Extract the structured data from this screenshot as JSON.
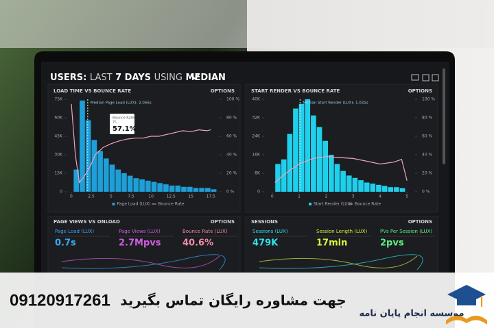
{
  "dashboard": {
    "header": [
      "USERS:",
      "LAST",
      "7 DAYS",
      "USING",
      "MEDIAN"
    ],
    "panels": [
      {
        "title": "LOAD TIME VS BOUNCE RATE",
        "options": "OPTIONS",
        "color": "#1e9fd8",
        "median_label": "Median Page Load (LUX): 2.056s",
        "median_x": 2.056,
        "tooltip": [
          "Bounce Rate",
          "7s",
          "57.1%"
        ],
        "xlim": [
          -0.6,
          18.6
        ],
        "xticks": [
          0,
          2.5,
          5,
          7.5,
          10,
          12.5,
          15,
          17.5
        ],
        "ylim": [
          0,
          75
        ],
        "yticks": [
          0,
          {
            "value": 15,
            "label": "15K"
          },
          {
            "value": 30,
            "label": "30K"
          },
          {
            "value": 45,
            "label": "45K"
          },
          {
            "value": 60,
            "label": "60K"
          },
          {
            "value": 75,
            "label": "75K"
          }
        ],
        "y2lim": [
          0,
          100
        ],
        "y2ticks": [
          {
            "value": 0,
            "label": "0 %"
          },
          {
            "value": 20,
            "label": "20 %"
          },
          {
            "value": 40,
            "label": "40 %"
          },
          {
            "value": 60,
            "label": "60 %"
          },
          {
            "value": 80,
            "label": "80 %"
          },
          {
            "value": 100,
            "label": "100 %"
          }
        ],
        "bins": [
          0.25,
          1,
          1.75,
          2.5,
          3.25,
          4,
          4.75,
          5.5,
          6.25,
          7,
          7.75,
          8.5,
          9.25,
          10,
          10.75,
          11.5,
          12.25,
          13,
          13.75,
          14.5,
          15.25,
          16,
          16.75,
          17.5,
          18.25
        ],
        "bars": [
          18,
          74,
          58,
          42,
          33,
          27,
          22,
          18,
          15,
          13,
          11,
          10,
          9,
          8,
          7,
          6,
          5,
          5,
          4,
          4,
          3,
          3,
          3,
          2
        ],
        "line_x": [
          0,
          0.5,
          1,
          1.5,
          2,
          2.5,
          3,
          4,
          5,
          6,
          7,
          8,
          9,
          10,
          11,
          12,
          13,
          14,
          15,
          16,
          17,
          17.5
        ],
        "line_values": [
          95,
          40,
          10,
          15,
          22,
          30,
          40,
          48,
          52,
          55,
          57,
          58,
          58,
          60,
          60,
          62,
          64,
          66,
          65,
          67,
          66,
          67
        ],
        "line_color": "#f0a4bd",
        "legend": [
          "Page Load (LUX)",
          "Bounce Rate"
        ]
      },
      {
        "title": "START RENDER VS BOUNCE RATE",
        "options": "OPTIONS",
        "color": "#1fd0ec",
        "median_label": "Median Start Render (LUX): 1.031s",
        "median_x": 1.031,
        "xlim": [
          -0.3,
          5.3
        ],
        "xticks": [
          0,
          1,
          2,
          3,
          4,
          5
        ],
        "ylim": [
          0,
          40
        ],
        "yticks": [
          0,
          {
            "value": 8,
            "label": "8K"
          },
          {
            "value": 16,
            "label": "16K"
          },
          {
            "value": 24,
            "label": "24K"
          },
          {
            "value": 32,
            "label": "32K"
          },
          {
            "value": 40,
            "label": "40K"
          }
        ],
        "y2lim": [
          0,
          100
        ],
        "y2ticks": [
          {
            "value": 0,
            "label": "0 %"
          },
          {
            "value": 20,
            "label": "20 %"
          },
          {
            "value": 40,
            "label": "40 %"
          },
          {
            "value": 60,
            "label": "60 %"
          },
          {
            "value": 80,
            "label": "80 %"
          },
          {
            "value": 100,
            "label": "100 %"
          }
        ],
        "bins": [
          0.1,
          0.32,
          0.54,
          0.76,
          0.98,
          1.2,
          1.42,
          1.64,
          1.86,
          2.08,
          2.3,
          2.52,
          2.74,
          2.96,
          3.18,
          3.4,
          3.62,
          3.84,
          4.06,
          4.28,
          4.5,
          4.72,
          4.94
        ],
        "bars": [
          12,
          14,
          25,
          36,
          38,
          40,
          33,
          28,
          22,
          16,
          12,
          9,
          7,
          6,
          5,
          4,
          3.5,
          3,
          2.5,
          2,
          2,
          1.5
        ],
        "line_x": [
          0.1,
          0.5,
          1,
          1.5,
          2,
          2.5,
          3,
          3.5,
          4,
          4.5,
          4.8,
          5
        ],
        "line_values": [
          10,
          20,
          30,
          36,
          38,
          37,
          36,
          33,
          30,
          32,
          35,
          12
        ],
        "line_color": "#f0a4bd",
        "legend": [
          "Start Render (LUX)",
          "Bounce Rate"
        ]
      }
    ],
    "bottom": [
      {
        "title": "PAGE VIEWS VS ONLOAD",
        "options": "OPTIONS",
        "metrics": [
          {
            "label": "Page Load (LUX)",
            "value": "0.7s",
            "color": "#3aa8f0"
          },
          {
            "label": "Page Views (LUX)",
            "value": "2.7Mpvs",
            "color": "#d05ee0"
          },
          {
            "label": "Bounce Rate (LUX)",
            "value": "40.6%",
            "color": "#f08aa8"
          }
        ]
      },
      {
        "title": "SESSIONS",
        "options": "OPTIONS",
        "metrics": [
          {
            "label": "Sessions (LUX)",
            "value": "479K",
            "color": "#2ee0e8"
          },
          {
            "label": "Session Length (LUX)",
            "value": "17min",
            "color": "#d8f040"
          },
          {
            "label": "PVs Per Session (LUX)",
            "value": "2pvs",
            "color": "#5ef080"
          }
        ]
      }
    ]
  },
  "banner": {
    "phone": "09120917261",
    "message": "جهت مشاوره رایگان تماس بگیرید",
    "brand": "موسسه انجام پایان نامه"
  }
}
